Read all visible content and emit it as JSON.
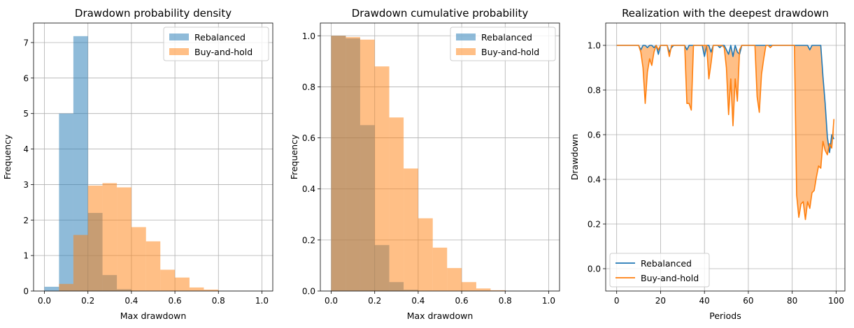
{
  "colors": {
    "rebalanced": "#1f77b4",
    "buy_and_hold": "#ff7f0e",
    "grid": "#b0b0b0",
    "legend_border": "#cccccc"
  },
  "chart_data": [
    {
      "type": "bar",
      "title": "Drawdown probability density",
      "xlabel": "Max drawdown",
      "ylabel": "Frequency",
      "xlim": [
        -0.05,
        1.05
      ],
      "ylim": [
        0,
        7.55
      ],
      "xticks": [
        0.0,
        0.2,
        0.4,
        0.6,
        0.8,
        1.0
      ],
      "xtick_labels": [
        "0.0",
        "0.2",
        "0.4",
        "0.6",
        "0.8",
        "1.0"
      ],
      "yticks": [
        0,
        1,
        2,
        3,
        4,
        5,
        6,
        7
      ],
      "ytick_labels": [
        "0",
        "1",
        "2",
        "3",
        "4",
        "5",
        "6",
        "7"
      ],
      "grid": true,
      "legend_position": "upper right",
      "series": [
        {
          "name": "Rebalanced",
          "color_key": "rebalanced",
          "opacity": 0.5,
          "bin_edges": [
            0.0,
            0.067,
            0.133,
            0.2,
            0.267,
            0.333,
            0.4,
            0.467,
            0.533,
            0.6,
            0.667,
            0.733,
            0.8,
            0.867,
            0.933,
            1.0
          ],
          "values": [
            0.12,
            5.0,
            7.18,
            2.2,
            0.45,
            0.05,
            0,
            0,
            0,
            0,
            0,
            0,
            0,
            0,
            0
          ]
        },
        {
          "name": "Buy-and-hold",
          "color_key": "buy_and_hold",
          "opacity": 0.5,
          "bin_edges": [
            0.0,
            0.067,
            0.133,
            0.2,
            0.267,
            0.333,
            0.4,
            0.467,
            0.533,
            0.6,
            0.667,
            0.733,
            0.8,
            0.867,
            0.933,
            1.0
          ],
          "values": [
            0.0,
            0.2,
            1.58,
            2.97,
            3.04,
            2.92,
            1.8,
            1.4,
            0.6,
            0.38,
            0.1,
            0.04,
            0,
            0,
            0
          ]
        }
      ]
    },
    {
      "type": "bar",
      "title": "Drawdown cumulative probability",
      "xlabel": "Max drawdown",
      "ylabel": "Frequency",
      "xlim": [
        -0.05,
        1.05
      ],
      "ylim": [
        0,
        1.05
      ],
      "xticks": [
        0.0,
        0.2,
        0.4,
        0.6,
        0.8,
        1.0
      ],
      "xtick_labels": [
        "0.0",
        "0.2",
        "0.4",
        "0.6",
        "0.8",
        "1.0"
      ],
      "yticks": [
        0.0,
        0.2,
        0.4,
        0.6,
        0.8,
        1.0
      ],
      "ytick_labels": [
        "0.0",
        "0.2",
        "0.4",
        "0.6",
        "0.8",
        "1.0"
      ],
      "grid": true,
      "legend_position": "upper right",
      "series": [
        {
          "name": "Rebalanced",
          "color_key": "rebalanced",
          "opacity": 0.5,
          "bin_edges": [
            0.0,
            0.067,
            0.133,
            0.2,
            0.267,
            0.333,
            0.4,
            0.467,
            0.533,
            0.6,
            0.667,
            0.733,
            0.8,
            0.867,
            0.933,
            1.0
          ],
          "values": [
            1.0,
            0.99,
            0.65,
            0.18,
            0.035,
            0.005,
            0,
            0,
            0,
            0,
            0,
            0,
            0,
            0,
            0
          ]
        },
        {
          "name": "Buy-and-hold",
          "color_key": "buy_and_hold",
          "opacity": 0.5,
          "bin_edges": [
            0.0,
            0.067,
            0.133,
            0.2,
            0.267,
            0.333,
            0.4,
            0.467,
            0.533,
            0.6,
            0.667,
            0.733,
            0.8,
            0.867,
            0.933,
            1.0
          ],
          "values": [
            1.0,
            0.995,
            0.985,
            0.88,
            0.68,
            0.48,
            0.285,
            0.17,
            0.09,
            0.035,
            0.01,
            0.003,
            0,
            0,
            0
          ]
        }
      ]
    },
    {
      "type": "line",
      "title": "Realization with the deepest drawdown",
      "xlabel": "Periods",
      "ylabel": "Drawdown",
      "xlim": [
        -5,
        104
      ],
      "ylim": [
        -0.1,
        1.1
      ],
      "xticks": [
        0,
        20,
        40,
        60,
        80,
        100
      ],
      "xtick_labels": [
        "0",
        "20",
        "40",
        "60",
        "80",
        "100"
      ],
      "yticks": [
        0.0,
        0.2,
        0.4,
        0.6,
        0.8,
        1.0
      ],
      "ytick_labels": [
        "0.0",
        "0.2",
        "0.4",
        "0.6",
        "0.8",
        "1.0"
      ],
      "grid": true,
      "legend_position": "lower left",
      "fill_between": true,
      "x": [
        0,
        1,
        2,
        3,
        4,
        5,
        6,
        7,
        8,
        9,
        10,
        11,
        12,
        13,
        14,
        15,
        16,
        17,
        18,
        19,
        20,
        21,
        22,
        23,
        24,
        25,
        26,
        27,
        28,
        29,
        30,
        31,
        32,
        33,
        34,
        35,
        36,
        37,
        38,
        39,
        40,
        41,
        42,
        43,
        44,
        45,
        46,
        47,
        48,
        49,
        50,
        51,
        52,
        53,
        54,
        55,
        56,
        57,
        58,
        59,
        60,
        61,
        62,
        63,
        64,
        65,
        66,
        67,
        68,
        69,
        70,
        71,
        72,
        73,
        74,
        75,
        76,
        77,
        78,
        79,
        80,
        81,
        82,
        83,
        84,
        85,
        86,
        87,
        88,
        89,
        90,
        91,
        92,
        93,
        94,
        95,
        96,
        97,
        98,
        99
      ],
      "series": [
        {
          "name": "Rebalanced",
          "color_key": "rebalanced",
          "values": [
            1,
            1,
            1,
            1,
            1,
            1,
            1,
            1,
            1,
            1,
            1,
            0.98,
            1,
            1,
            0.99,
            1,
            1,
            0.99,
            1,
            0.96,
            1,
            1,
            1,
            1,
            0.97,
            0.99,
            1,
            1,
            1,
            1,
            1,
            1,
            0.98,
            1,
            1,
            1,
            1,
            1,
            1,
            1,
            0.95,
            1,
            1,
            0.97,
            1,
            1,
            1,
            0.99,
            1,
            1,
            0.98,
            0.96,
            1,
            0.95,
            1,
            0.97,
            0.96,
            1,
            1,
            1,
            1,
            1,
            1,
            1,
            1,
            1,
            1,
            1,
            1,
            1,
            1,
            1,
            1,
            1,
            1,
            1,
            1,
            1,
            1,
            1,
            1,
            1,
            1,
            1,
            1,
            1,
            1,
            1,
            0.98,
            1,
            1,
            1,
            1,
            1,
            0.86,
            0.74,
            0.59,
            0.52,
            0.6,
            0.58
          ]
        },
        {
          "name": "Buy-and-hold",
          "color_key": "buy_and_hold",
          "values": [
            1,
            1,
            1,
            1,
            1,
            1,
            1,
            1,
            1,
            1,
            1,
            0.97,
            0.9,
            0.74,
            0.88,
            0.94,
            0.91,
            0.97,
            1,
            0.98,
            1,
            1,
            1,
            1,
            0.95,
            1,
            1,
            1,
            1,
            1,
            1,
            1,
            0.74,
            0.74,
            0.71,
            1,
            1,
            1,
            1,
            1,
            1,
            1,
            0.85,
            0.92,
            1,
            1,
            1,
            1,
            1,
            0.99,
            0.9,
            0.69,
            0.85,
            0.64,
            0.85,
            0.75,
            0.98,
            1,
            1,
            1,
            1,
            1,
            1,
            1,
            0.77,
            0.7,
            0.87,
            0.94,
            1,
            1,
            0.99,
            1,
            1,
            1,
            1,
            1,
            1,
            1,
            1,
            1,
            1,
            1,
            0.33,
            0.23,
            0.29,
            0.3,
            0.22,
            0.3,
            0.27,
            0.34,
            0.35,
            0.41,
            0.46,
            0.45,
            0.57,
            0.53,
            0.51,
            0.56,
            0.54,
            0.67
          ]
        }
      ]
    }
  ]
}
